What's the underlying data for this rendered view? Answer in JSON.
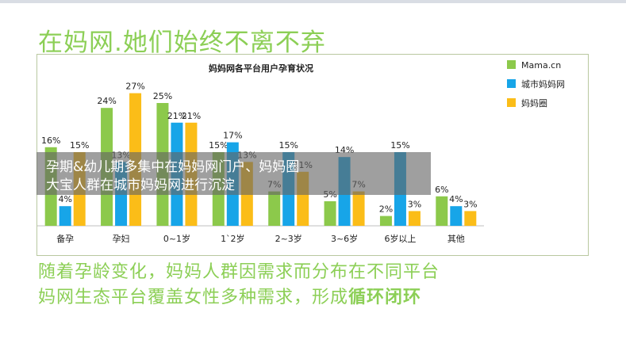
{
  "slide": {
    "title": "在妈网.她们始终不离不弃",
    "overlay_line1": "孕期&幼儿期多集中在妈妈网门户、妈妈圈",
    "overlay_line2": "大宝人群在城市妈妈网进行沉淀",
    "bottom_line1": "随着孕龄变化，妈妈人群因需求而分布在不同平台",
    "bottom_line2_prefix": "妈网生态平台覆盖女性多种需求，形成",
    "bottom_line2_strong": "循环闭环"
  },
  "colors": {
    "title_green": "#8ccf56",
    "series_green": "#8cc94b",
    "series_blue": "#17a5e8",
    "series_yellow": "#fbbd18",
    "overlay": "rgba(100,100,100,0.62)"
  },
  "chart_data": {
    "type": "bar",
    "title": "妈妈网各平台用户孕育状况",
    "categories": [
      "备孕",
      "孕妇",
      "0~1岁",
      "1`2岁",
      "2~3岁",
      "3~6岁",
      "6岁以上",
      "其他"
    ],
    "series": [
      {
        "name": "Mama.cn",
        "color": "#8cc94b",
        "values": [
          16,
          24,
          25,
          15,
          7,
          5,
          2,
          6
        ]
      },
      {
        "name": "城市妈妈网",
        "color": "#17a5e8",
        "values": [
          4,
          13,
          21,
          17,
          15,
          14,
          15,
          4
        ]
      },
      {
        "name": "妈妈圈",
        "color": "#fbbd18",
        "values": [
          15,
          27,
          21,
          13,
          11,
          7,
          3,
          3
        ]
      }
    ],
    "value_format": "%",
    "ylim": [
      0,
      30
    ],
    "grid": false,
    "legend": "right"
  }
}
